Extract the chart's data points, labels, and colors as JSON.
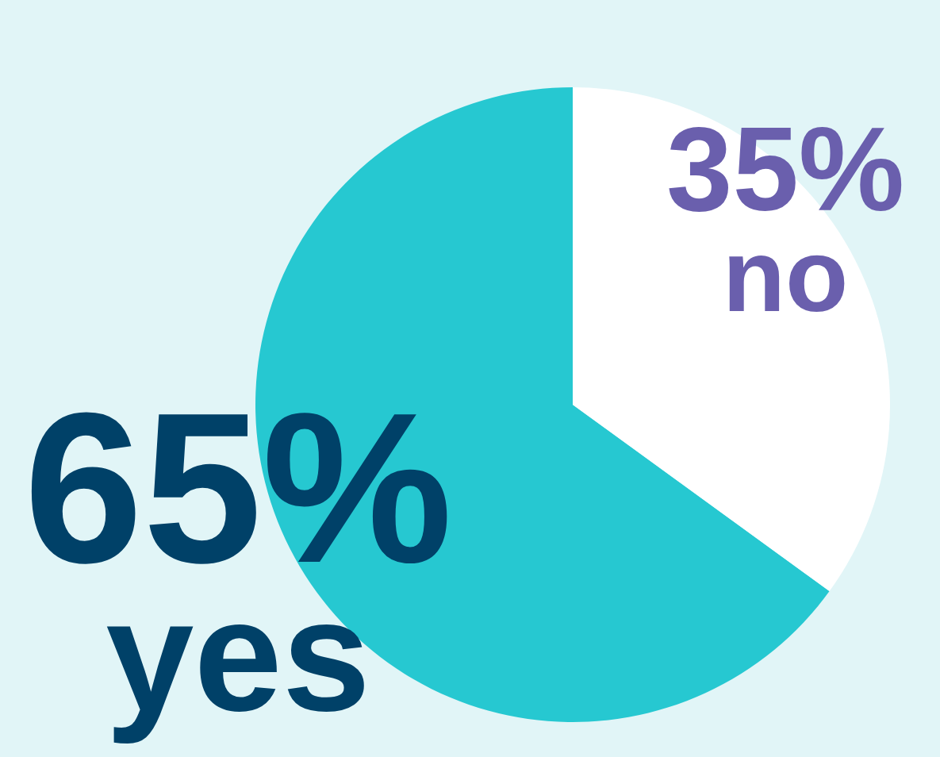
{
  "chart_data": {
    "type": "pie",
    "categories": [
      "yes",
      "no"
    ],
    "values": [
      65,
      35
    ],
    "colors": [
      "#26c8d1",
      "#ffffff"
    ],
    "value_labels": [
      "65%",
      "35%"
    ],
    "legend": false
  }
}
